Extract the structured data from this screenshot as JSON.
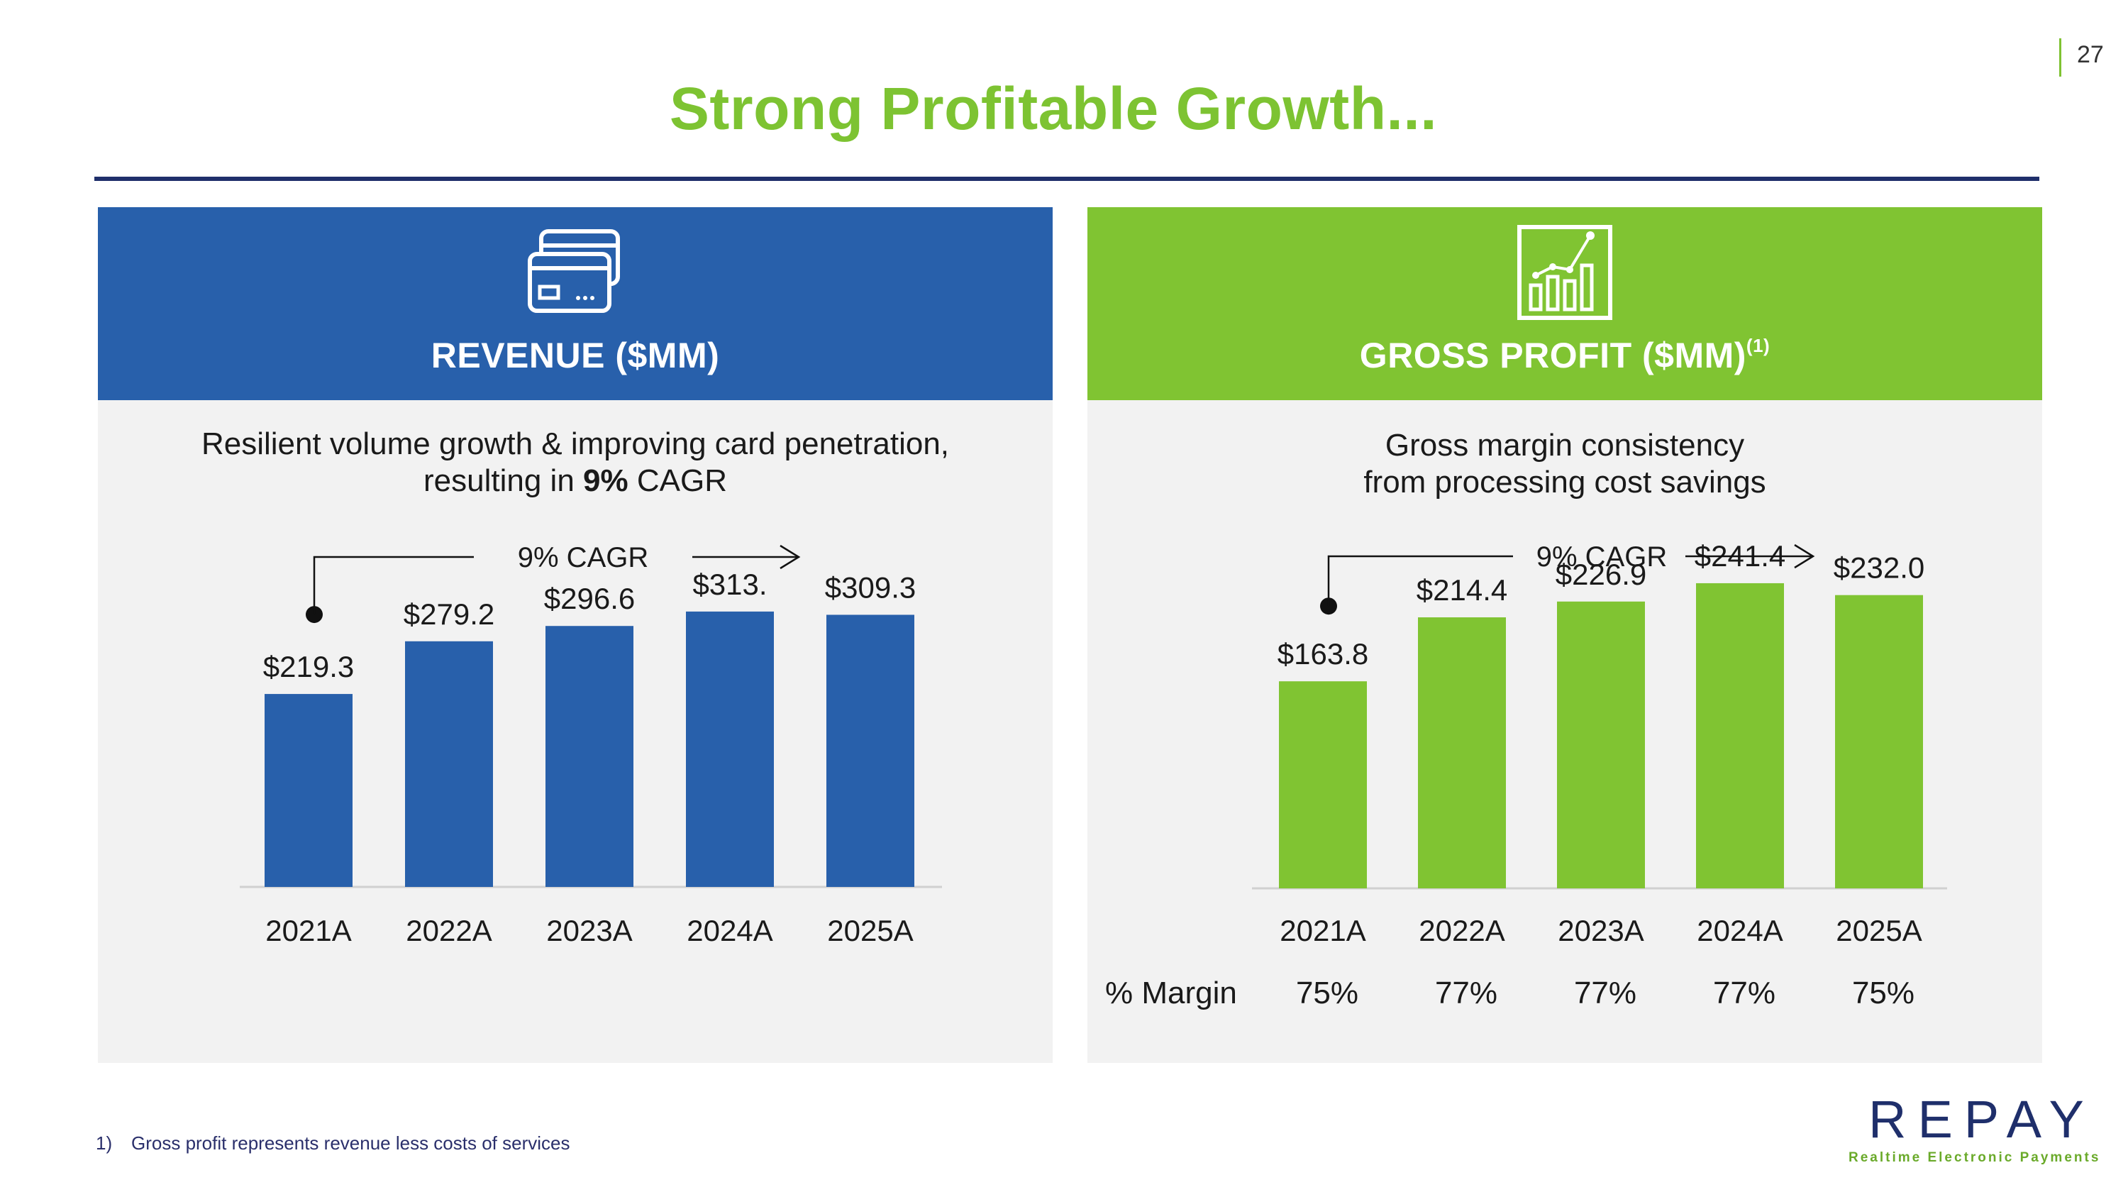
{
  "page_number": "27",
  "title": "Strong Profitable Growth...",
  "footnote": {
    "number": "1)",
    "text": "Gross profit represents revenue less costs of services"
  },
  "logo": {
    "word": "REPAY",
    "tagline": "Realtime Electronic Payments"
  },
  "colors": {
    "blue": "#2860ab",
    "green": "#80c432",
    "navy": "#1f2f6b"
  },
  "revenue_panel": {
    "heading": "REVENUE ($MM)",
    "icon": "credit-cards-icon",
    "subtitle_line1": "Resilient volume growth & improving card penetration,",
    "subtitle_line2_prefix": "resulting in ",
    "subtitle_line2_bold": "9%",
    "subtitle_line2_suffix": " CAGR"
  },
  "gp_panel": {
    "heading": "GROSS PROFIT ($MM)",
    "heading_sup": "(1)",
    "icon": "growth-chart-icon",
    "subtitle_line1": "Gross margin consistency",
    "subtitle_line2": "from processing cost savings",
    "margin_label": "% Margin",
    "margins": [
      "75%",
      "77%",
      "77%",
      "77%",
      "75%"
    ]
  },
  "chart_data": [
    {
      "type": "bar",
      "title": "REVENUE ($MM)",
      "categories": [
        "2021A",
        "2022A",
        "2023A",
        "2024A",
        "2025A"
      ],
      "values": [
        219.3,
        279.2,
        296.6,
        313.0,
        309.3
      ],
      "labels": [
        "$219.3",
        "$279.2",
        "$296.6",
        "$313.",
        "$309.3"
      ],
      "annotation": "9% CAGR",
      "ylim": [
        0,
        350
      ],
      "xlabel": "",
      "ylabel": ""
    },
    {
      "type": "bar",
      "title": "GROSS PROFIT ($MM)",
      "categories": [
        "2021A",
        "2022A",
        "2023A",
        "2024A",
        "2025A"
      ],
      "values": [
        163.8,
        214.4,
        226.9,
        241.4,
        232.0
      ],
      "labels": [
        "$163.8",
        "$214.4",
        "$226.9",
        "$241.4",
        "$232.0"
      ],
      "annotation": "9% CAGR",
      "ylim": [
        0,
        270
      ],
      "xlabel": "",
      "ylabel": ""
    }
  ]
}
